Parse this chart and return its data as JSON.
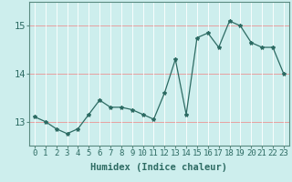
{
  "x": [
    0,
    1,
    2,
    3,
    4,
    5,
    6,
    7,
    8,
    9,
    10,
    11,
    12,
    13,
    14,
    15,
    16,
    17,
    18,
    19,
    20,
    21,
    22,
    23
  ],
  "y": [
    13.1,
    13.0,
    12.85,
    12.75,
    12.85,
    13.15,
    13.45,
    13.3,
    13.3,
    13.25,
    13.15,
    13.05,
    13.6,
    14.3,
    13.15,
    14.75,
    14.85,
    14.55,
    15.1,
    15.0,
    14.65,
    14.55,
    14.55,
    14.0
  ],
  "line_color": "#2d6b63",
  "marker": "*",
  "marker_size": 3,
  "bg_color": "#cdeeed",
  "grid_color": "#ffffff",
  "xlabel": "Humidex (Indice chaleur)",
  "xlabel_fontsize": 7.5,
  "tick_fontsize": 6.5,
  "ylim": [
    12.5,
    15.5
  ],
  "xlim": [
    -0.5,
    23.5
  ],
  "yticks": [
    13,
    14,
    15
  ],
  "xticks": [
    0,
    1,
    2,
    3,
    4,
    5,
    6,
    7,
    8,
    9,
    10,
    11,
    12,
    13,
    14,
    15,
    16,
    17,
    18,
    19,
    20,
    21,
    22,
    23
  ],
  "spine_color": "#5a8a80",
  "red_grid_color": "#e8b0b0",
  "white_grid_color": "#ffffff"
}
